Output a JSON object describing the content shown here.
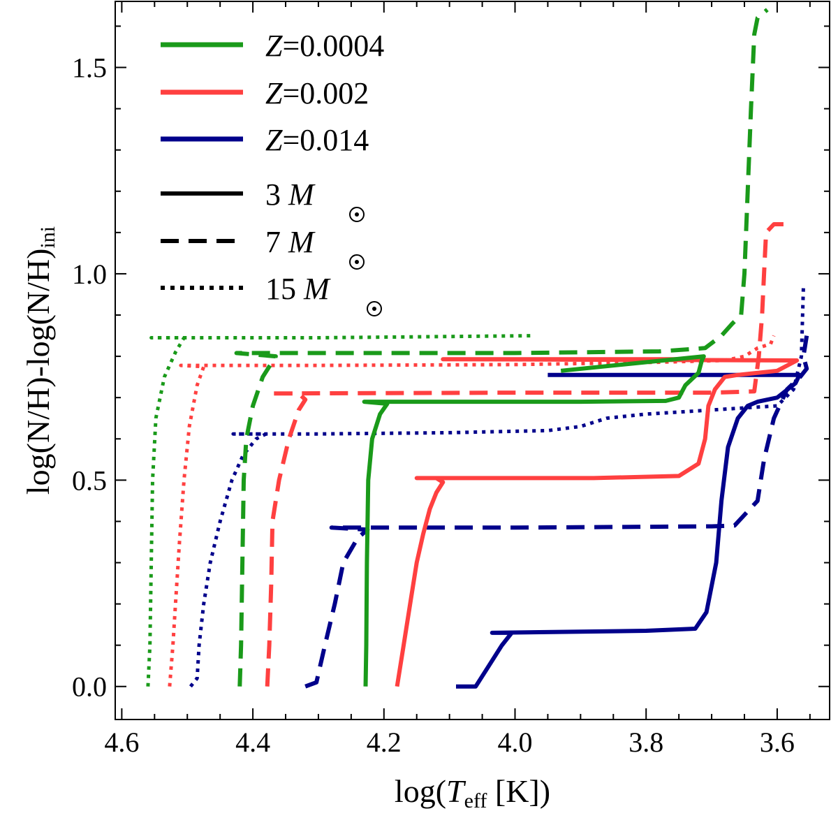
{
  "chart_data": {
    "type": "line",
    "title": "",
    "xlabel": {
      "prefix": "log(",
      "var": "T",
      "sub": "eff",
      "suffix": " [K])"
    },
    "ylabel": {
      "main": "log(N/H)-log(N/H)",
      "sub": "ini"
    },
    "xlim": [
      4.61,
      3.52
    ],
    "ylim": [
      -0.08,
      1.66
    ],
    "xticks": [
      4.6,
      4.4,
      4.2,
      4.0,
      3.8,
      3.6
    ],
    "xtick_labels": [
      "4.6",
      "4.4",
      "4.2",
      "4.0",
      "3.8",
      "3.6"
    ],
    "yticks": [
      0.0,
      0.5,
      1.0,
      1.5
    ],
    "ytick_labels": [
      "0.0",
      "0.5",
      "1.0",
      "1.5"
    ],
    "legend_placement": "top-left",
    "legend_metallicity": [
      {
        "prefix": "Z",
        "value": "=0.0004",
        "color": "#1a9a1a"
      },
      {
        "prefix": "Z",
        "value": "=0.002",
        "color": "#ff4040"
      },
      {
        "prefix": "Z",
        "value": "=0.014",
        "color": "#00008b"
      }
    ],
    "legend_mass": [
      {
        "value": "3",
        "unit": "M",
        "style": "solid"
      },
      {
        "value": "7",
        "unit": "M",
        "style": "dashed"
      },
      {
        "value": "15",
        "unit": "M",
        "style": "dotted"
      }
    ],
    "colors": {
      "Z0.0004": "#1a9a1a",
      "Z0.002": "#ff4040",
      "Z0.014": "#00008b"
    },
    "series": [
      {
        "name": "Z=0.014 15 Msun",
        "color": "#00008b",
        "style": "dotted",
        "points": [
          [
            4.495,
            0.0
          ],
          [
            4.485,
            0.02
          ],
          [
            4.482,
            0.1
          ],
          [
            4.475,
            0.2
          ],
          [
            4.465,
            0.3
          ],
          [
            4.45,
            0.4
          ],
          [
            4.432,
            0.5
          ],
          [
            4.415,
            0.56
          ],
          [
            4.395,
            0.6
          ],
          [
            4.38,
            0.612
          ],
          [
            4.43,
            0.612
          ],
          [
            4.3,
            0.612
          ],
          [
            4.1,
            0.615
          ],
          [
            3.95,
            0.62
          ],
          [
            3.9,
            0.63
          ],
          [
            3.86,
            0.65
          ],
          [
            3.8,
            0.66
          ],
          [
            3.7,
            0.67
          ],
          [
            3.6,
            0.68
          ],
          [
            3.575,
            0.72
          ],
          [
            3.563,
            0.8
          ],
          [
            3.56,
            0.97
          ]
        ]
      },
      {
        "name": "Z=0.014 7 Msun",
        "color": "#00008b",
        "style": "dashed",
        "points": [
          [
            4.32,
            0.0
          ],
          [
            4.303,
            0.01
          ],
          [
            4.29,
            0.1
          ],
          [
            4.275,
            0.2
          ],
          [
            4.262,
            0.3
          ],
          [
            4.24,
            0.36
          ],
          [
            4.225,
            0.38
          ],
          [
            4.28,
            0.385
          ],
          [
            4.0,
            0.385
          ],
          [
            3.7,
            0.388
          ],
          [
            3.665,
            0.39
          ],
          [
            3.63,
            0.45
          ],
          [
            3.62,
            0.55
          ],
          [
            3.605,
            0.65
          ],
          [
            3.585,
            0.72
          ],
          [
            3.565,
            0.75
          ],
          [
            3.555,
            0.77
          ],
          [
            3.56,
            0.8
          ],
          [
            3.555,
            0.85
          ]
        ]
      },
      {
        "name": "Z=0.014 3 Msun",
        "color": "#00008b",
        "style": "solid",
        "points": [
          [
            4.09,
            0.0
          ],
          [
            4.06,
            0.0
          ],
          [
            4.04,
            0.05
          ],
          [
            4.02,
            0.1
          ],
          [
            4.005,
            0.13
          ],
          [
            4.035,
            0.13
          ],
          [
            3.8,
            0.135
          ],
          [
            3.725,
            0.14
          ],
          [
            3.708,
            0.18
          ],
          [
            3.693,
            0.3
          ],
          [
            3.685,
            0.45
          ],
          [
            3.675,
            0.58
          ],
          [
            3.66,
            0.65
          ],
          [
            3.645,
            0.68
          ],
          [
            3.63,
            0.69
          ],
          [
            3.6,
            0.7
          ],
          [
            3.572,
            0.735
          ],
          [
            3.566,
            0.755
          ],
          [
            3.7,
            0.755
          ],
          [
            3.95,
            0.755
          ]
        ]
      },
      {
        "name": "Z=0.002 15 Msun",
        "color": "#ff4040",
        "style": "dotted",
        "points": [
          [
            4.527,
            0.0
          ],
          [
            4.522,
            0.1
          ],
          [
            4.518,
            0.2
          ],
          [
            4.512,
            0.35
          ],
          [
            4.505,
            0.5
          ],
          [
            4.497,
            0.63
          ],
          [
            4.485,
            0.73
          ],
          [
            4.475,
            0.775
          ],
          [
            4.51,
            0.778
          ],
          [
            4.3,
            0.778
          ],
          [
            4.0,
            0.78
          ],
          [
            3.8,
            0.785
          ],
          [
            3.68,
            0.79
          ],
          [
            3.65,
            0.8
          ],
          [
            3.63,
            0.82
          ],
          [
            3.61,
            0.83
          ],
          [
            3.605,
            0.85
          ]
        ]
      },
      {
        "name": "Z=0.002 7 Msun",
        "color": "#ff4040",
        "style": "dashed",
        "points": [
          [
            4.378,
            0.0
          ],
          [
            4.375,
            0.1
          ],
          [
            4.372,
            0.25
          ],
          [
            4.37,
            0.4
          ],
          [
            4.36,
            0.5
          ],
          [
            4.345,
            0.6
          ],
          [
            4.33,
            0.67
          ],
          [
            4.32,
            0.695
          ],
          [
            4.33,
            0.71
          ],
          [
            4.375,
            0.71
          ],
          [
            4.0,
            0.712
          ],
          [
            3.7,
            0.712
          ],
          [
            3.635,
            0.715
          ],
          [
            3.628,
            0.8
          ],
          [
            3.623,
            0.9
          ],
          [
            3.62,
            1.0
          ],
          [
            3.617,
            1.1
          ],
          [
            3.605,
            1.12
          ],
          [
            3.58,
            1.12
          ]
        ]
      },
      {
        "name": "Z=0.002 3 Msun",
        "color": "#ff4040",
        "style": "solid",
        "points": [
          [
            4.18,
            0.0
          ],
          [
            4.175,
            0.05
          ],
          [
            4.17,
            0.1
          ],
          [
            4.16,
            0.2
          ],
          [
            4.15,
            0.3
          ],
          [
            4.14,
            0.37
          ],
          [
            4.13,
            0.43
          ],
          [
            4.12,
            0.47
          ],
          [
            4.11,
            0.495
          ],
          [
            4.12,
            0.505
          ],
          [
            4.15,
            0.505
          ],
          [
            3.88,
            0.505
          ],
          [
            3.75,
            0.51
          ],
          [
            3.72,
            0.54
          ],
          [
            3.71,
            0.6
          ],
          [
            3.705,
            0.68
          ],
          [
            3.695,
            0.72
          ],
          [
            3.68,
            0.75
          ],
          [
            3.66,
            0.755
          ],
          [
            3.6,
            0.765
          ],
          [
            3.57,
            0.79
          ],
          [
            4.11,
            0.793
          ],
          [
            3.71,
            0.793
          ]
        ]
      },
      {
        "name": "Z=0.0004 15 Msun",
        "color": "#1a9a1a",
        "style": "dotted",
        "points": [
          [
            4.56,
            0.0
          ],
          [
            4.557,
            0.1
          ],
          [
            4.555,
            0.3
          ],
          [
            4.553,
            0.5
          ],
          [
            4.548,
            0.65
          ],
          [
            4.535,
            0.75
          ],
          [
            4.518,
            0.81
          ],
          [
            4.505,
            0.845
          ],
          [
            4.555,
            0.845
          ],
          [
            4.3,
            0.845
          ],
          [
            3.975,
            0.85
          ]
        ]
      },
      {
        "name": "Z=0.0004 7 Msun",
        "color": "#1a9a1a",
        "style": "dashed",
        "points": [
          [
            4.42,
            0.0
          ],
          [
            4.418,
            0.1
          ],
          [
            4.416,
            0.3
          ],
          [
            4.414,
            0.5
          ],
          [
            4.41,
            0.6
          ],
          [
            4.4,
            0.68
          ],
          [
            4.385,
            0.75
          ],
          [
            4.365,
            0.8
          ],
          [
            4.425,
            0.808
          ],
          [
            4.0,
            0.808
          ],
          [
            3.78,
            0.812
          ],
          [
            3.71,
            0.82
          ],
          [
            3.685,
            0.85
          ],
          [
            3.668,
            0.88
          ],
          [
            3.655,
            0.9
          ],
          [
            3.65,
            1.0
          ],
          [
            3.645,
            1.2
          ],
          [
            3.64,
            1.4
          ],
          [
            3.635,
            1.58
          ],
          [
            3.63,
            1.62
          ],
          [
            3.615,
            1.64
          ]
        ]
      },
      {
        "name": "Z=0.0004 3 Msun",
        "color": "#1a9a1a",
        "style": "solid",
        "points": [
          [
            4.228,
            0.0
          ],
          [
            4.227,
            0.1
          ],
          [
            4.226,
            0.3
          ],
          [
            4.224,
            0.5
          ],
          [
            4.218,
            0.6
          ],
          [
            4.206,
            0.66
          ],
          [
            4.195,
            0.685
          ],
          [
            4.23,
            0.69
          ],
          [
            3.9,
            0.69
          ],
          [
            3.77,
            0.692
          ],
          [
            3.75,
            0.7
          ],
          [
            3.74,
            0.73
          ],
          [
            3.72,
            0.76
          ],
          [
            3.715,
            0.79
          ],
          [
            3.712,
            0.8
          ],
          [
            3.93,
            0.765
          ]
        ]
      }
    ]
  }
}
